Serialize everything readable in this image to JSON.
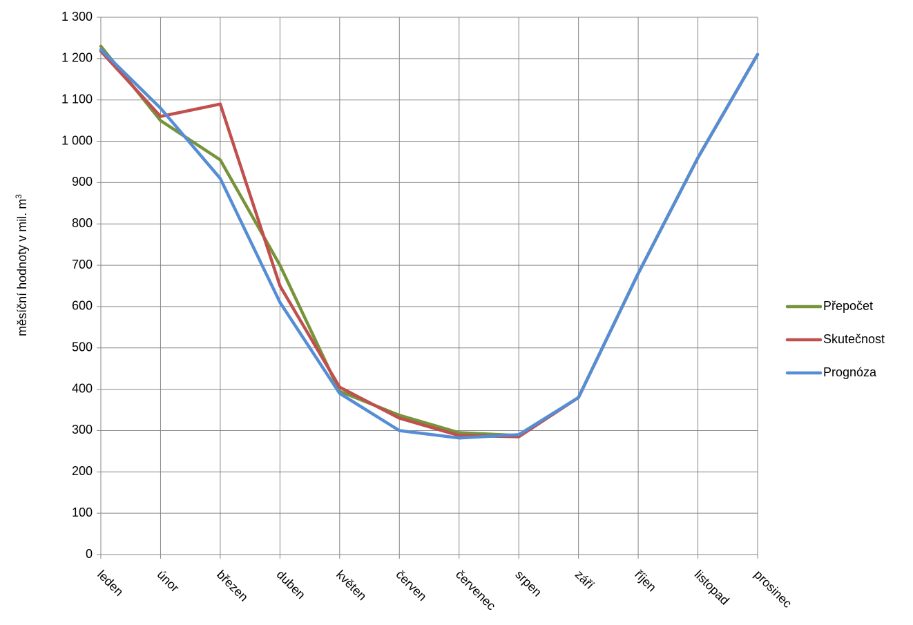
{
  "chart_data": {
    "type": "line",
    "title": "",
    "xlabel": "",
    "ylabel": "měsíční hodnoty v mil. m",
    "ylabel_superscript": "3",
    "ylim": [
      0,
      1300
    ],
    "ytick_step": 100,
    "ytick_labels": [
      "0",
      "100",
      "200",
      "300",
      "400",
      "500",
      "600",
      "700",
      "800",
      "900",
      "1 000",
      "1 100",
      "1 200",
      "1 300"
    ],
    "grid": true,
    "legend_position": "right",
    "categories": [
      "leden",
      "únor",
      "březen",
      "duben",
      "květen",
      "červen",
      "červenec",
      "srpen",
      "září",
      "říjen",
      "listopad",
      "prosinec"
    ],
    "series": [
      {
        "name": "Přepočet",
        "color": "#77933c",
        "values": [
          1230,
          1050,
          955,
          700,
          395,
          337,
          295,
          288,
          380,
          680,
          960,
          1210
        ]
      },
      {
        "name": "Skutečnost",
        "color": "#c0504d",
        "values": [
          1218,
          1060,
          1090,
          650,
          405,
          330,
          288,
          285,
          380,
          680,
          960,
          1210
        ]
      },
      {
        "name": "Prognóza",
        "color": "#558ed5",
        "values": [
          1222,
          1080,
          910,
          610,
          390,
          300,
          282,
          290,
          380,
          680,
          960,
          1210
        ]
      }
    ]
  }
}
